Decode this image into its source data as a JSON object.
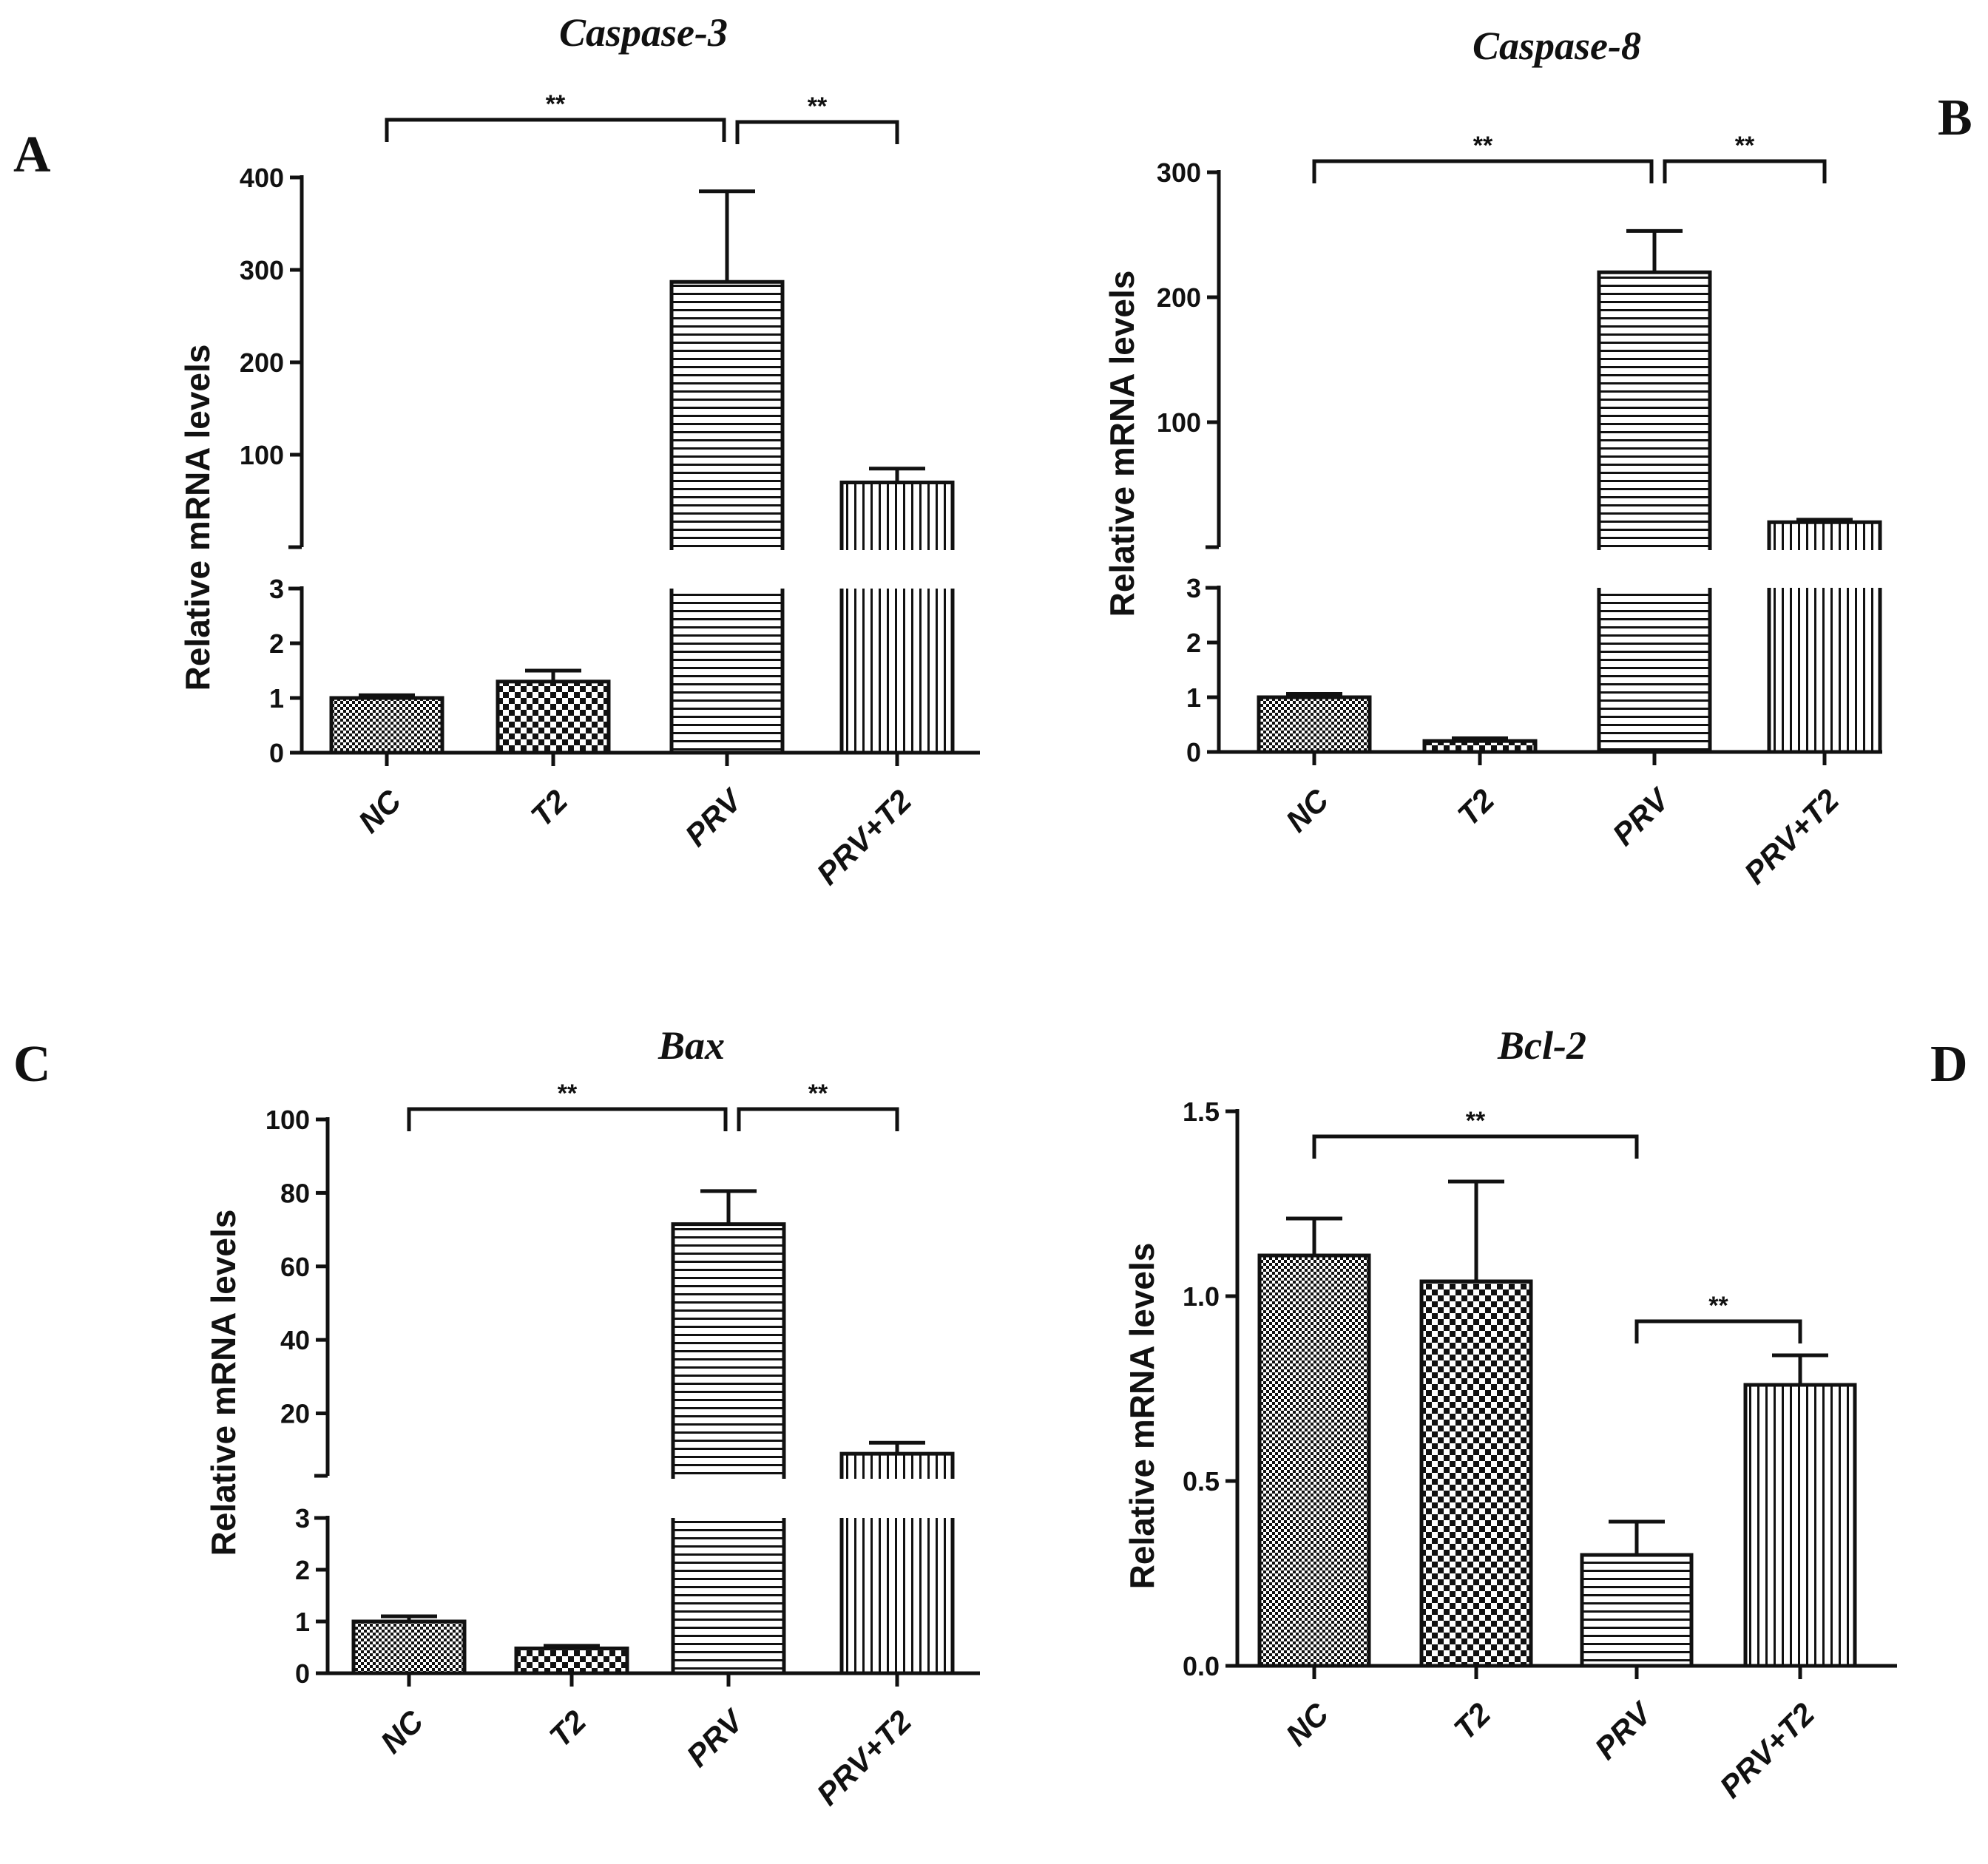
{
  "figure": {
    "panels": [
      {
        "letter": "A",
        "title": "Caspase-3",
        "ylabel": "Relative mRNA levels"
      },
      {
        "letter": "B",
        "title": "Caspase-8",
        "ylabel": "Relative mRNA levels"
      },
      {
        "letter": "C",
        "title": "Bax",
        "ylabel": "Relative mRNA levels"
      },
      {
        "letter": "D",
        "title": "Bcl-2",
        "ylabel": "Relative mRNA levels"
      }
    ]
  },
  "chart_data": [
    {
      "type": "bar",
      "panel": "A",
      "title": "Caspase-3",
      "ylabel": "Relative mRNA levels",
      "xlabel": "",
      "categories": [
        "NC",
        "T2",
        "PRV",
        "PRV+T2"
      ],
      "values": [
        1.0,
        1.3,
        287,
        70
      ],
      "errors": [
        0.05,
        0.2,
        98,
        15
      ],
      "patterns": [
        "fine-check",
        "check",
        "horizontal",
        "vertical"
      ],
      "axis_break": {
        "lower_range": [
          0,
          3
        ],
        "upper_range": [
          0,
          400
        ]
      },
      "lower_ticks": [
        "0",
        "1",
        "2",
        "3"
      ],
      "upper_ticks": [
        "100",
        "200",
        "300",
        "400"
      ],
      "significance": [
        {
          "from": "NC",
          "to": "PRV",
          "label": "**"
        },
        {
          "from": "PRV",
          "to": "PRV+T2",
          "label": "**"
        }
      ]
    },
    {
      "type": "bar",
      "panel": "B",
      "title": "Caspase-8",
      "ylabel": "Relative mRNA levels",
      "xlabel": "",
      "categories": [
        "NC",
        "T2",
        "PRV",
        "PRV+T2"
      ],
      "values": [
        1.0,
        0.2,
        220,
        20
      ],
      "errors": [
        0.06,
        0.05,
        33,
        2
      ],
      "patterns": [
        "fine-check",
        "check",
        "horizontal",
        "vertical"
      ],
      "axis_break": {
        "lower_range": [
          0,
          3
        ],
        "upper_range": [
          0,
          300
        ]
      },
      "lower_ticks": [
        "0",
        "1",
        "2",
        "3"
      ],
      "upper_ticks": [
        "100",
        "200",
        "300"
      ],
      "significance": [
        {
          "from": "NC",
          "to": "PRV",
          "label": "**"
        },
        {
          "from": "PRV",
          "to": "PRV+T2",
          "label": "**"
        }
      ]
    },
    {
      "type": "bar",
      "panel": "C",
      "title": "Bax",
      "ylabel": "Relative mRNA levels",
      "xlabel": "",
      "categories": [
        "NC",
        "T2",
        "PRV",
        "PRV+T2"
      ],
      "values": [
        1.0,
        0.48,
        71.5,
        9
      ],
      "errors": [
        0.1,
        0.05,
        9,
        3
      ],
      "patterns": [
        "fine-check",
        "check",
        "horizontal",
        "vertical"
      ],
      "axis_break": {
        "lower_range": [
          0,
          3
        ],
        "upper_range": [
          3,
          100
        ]
      },
      "lower_ticks": [
        "0",
        "1",
        "2",
        "3"
      ],
      "upper_ticks": [
        "20",
        "40",
        "60",
        "80",
        "100"
      ],
      "significance": [
        {
          "from": "NC",
          "to": "PRV",
          "label": "**"
        },
        {
          "from": "PRV",
          "to": "PRV+T2",
          "label": "**"
        }
      ]
    },
    {
      "type": "bar",
      "panel": "D",
      "title": "Bcl-2",
      "ylabel": "Relative mRNA levels",
      "xlabel": "",
      "categories": [
        "NC",
        "T2",
        "PRV",
        "PRV+T2"
      ],
      "values": [
        1.11,
        1.04,
        0.3,
        0.76
      ],
      "errors": [
        0.1,
        0.27,
        0.09,
        0.08
      ],
      "patterns": [
        "fine-check",
        "check",
        "horizontal",
        "vertical"
      ],
      "ylim": [
        0,
        1.5
      ],
      "ticks": [
        "0.0",
        "0.5",
        "1.0",
        "1.5"
      ],
      "significance": [
        {
          "from": "NC",
          "to": "PRV",
          "label": "**"
        },
        {
          "from": "PRV",
          "to": "PRV+T2",
          "label": "**"
        }
      ]
    }
  ]
}
